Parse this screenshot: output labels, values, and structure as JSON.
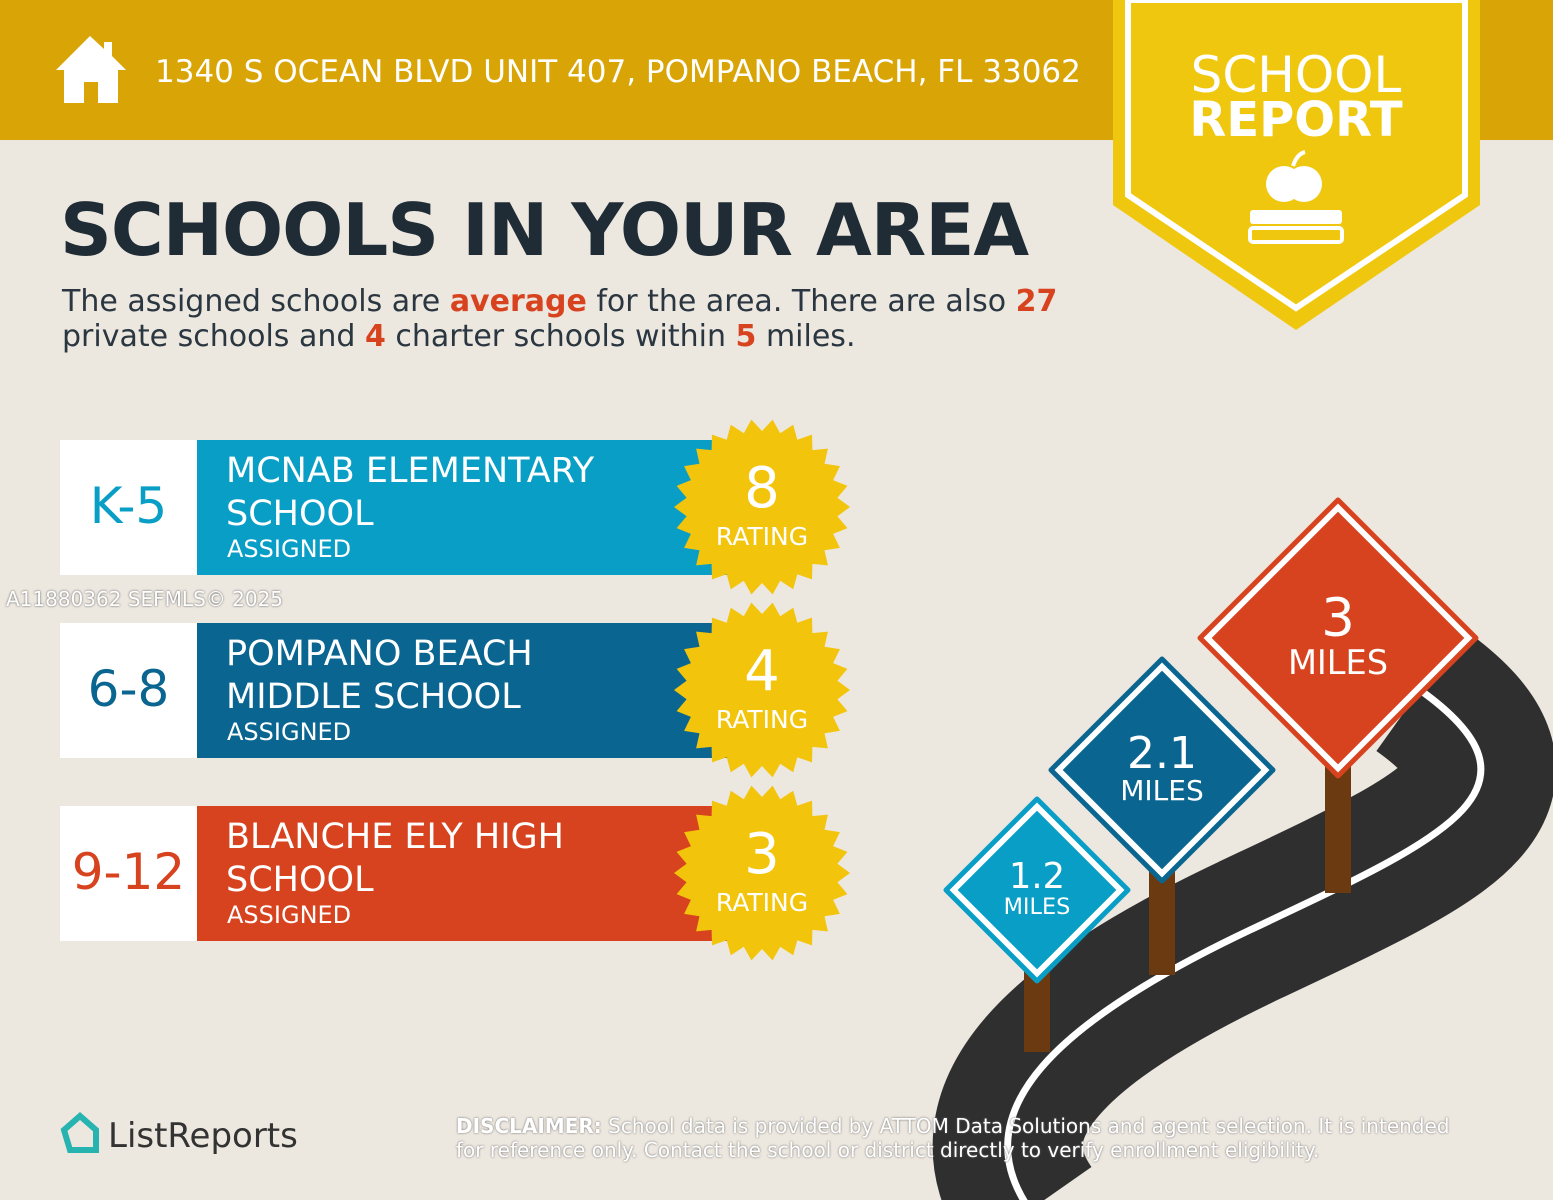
{
  "header": {
    "address": "1340 S OCEAN BLVD UNIT 407, POMPANO BEACH, FL 33062"
  },
  "badge": {
    "line1": "SCHOOL",
    "line2": "REPORT"
  },
  "title": "SCHOOLS IN YOUR AREA",
  "summary": {
    "parts": [
      "The assigned schools are ",
      "average",
      " for the area. There are also ",
      27,
      " private schools and ",
      4,
      " charter schools within ",
      5,
      " miles."
    ]
  },
  "schools": [
    {
      "grades": "K-5",
      "name_lines": [
        "MCNAB ELEMENTARY",
        "SCHOOL"
      ],
      "status": "ASSIGNED",
      "rating": 8,
      "rating_label": "RATING"
    },
    {
      "grades": "6-8",
      "name_lines": [
        "POMPANO BEACH",
        "MIDDLE SCHOOL"
      ],
      "status": "ASSIGNED",
      "rating": 4,
      "rating_label": "RATING"
    },
    {
      "grades": "9-12",
      "name_lines": [
        "BLANCHE ELY HIGH",
        "SCHOOL"
      ],
      "status": "ASSIGNED",
      "rating": 3,
      "rating_label": "RATING"
    }
  ],
  "distances": [
    {
      "value": 1.2,
      "unit": "MILES"
    },
    {
      "value": 2.1,
      "unit": "MILES"
    },
    {
      "value": 3,
      "unit": "MILES"
    }
  ],
  "watermark": "A11880362  SEFMLS© 2025",
  "brand": "ListReports",
  "disclaimer": {
    "label": "DISCLAIMER:",
    "text": " School data is provided by ATTOM Data Solutions and agent selection. It is intended for reference only. Contact the school or district directly to verify enrollment eligibility."
  }
}
